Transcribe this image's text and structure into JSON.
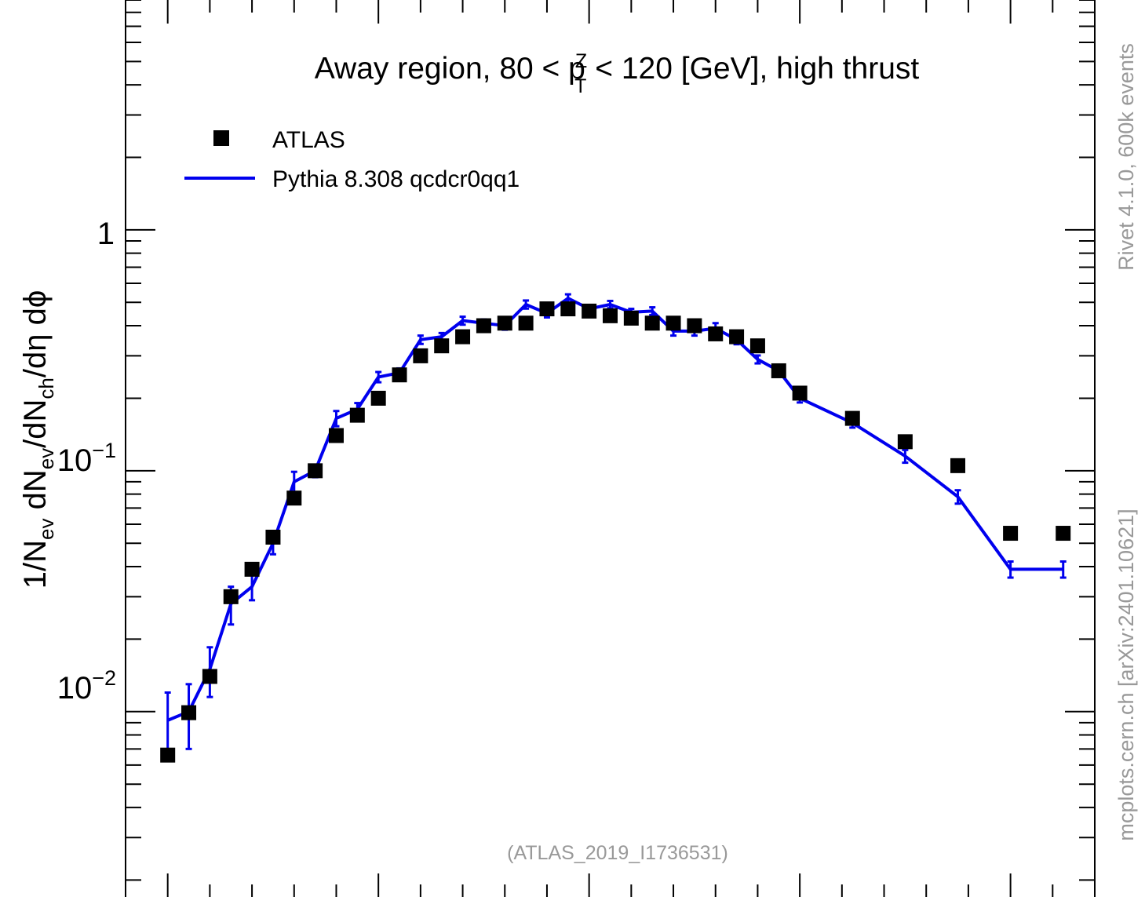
{
  "chart_data": {
    "type": "scatter",
    "title": "Away region, 80 < p",
    "title_sup": "Z",
    "title_sub": "T",
    "title_tail": " < 120 [GeV], high thrust",
    "ylabel": {
      "p1": "1/N",
      "s1": "ev",
      "p2": " dN",
      "s2": "ev",
      "p3": "/dN",
      "s3": "ch",
      "p4": "/dη dϕ"
    },
    "yscale": "log",
    "ylim": [
      0.0017,
      9.0
    ],
    "xlim": [
      -0.2,
      4.4
    ],
    "y_tick_labels": [
      {
        "value": 1,
        "base": "1",
        "exp": ""
      },
      {
        "value": 0.1,
        "base": "10",
        "exp": "−1"
      },
      {
        "value": 0.01,
        "base": "10",
        "exp": "−2"
      }
    ],
    "legend_position": "top-left",
    "reference_label": "(ATLAS_2019_I1736531)",
    "side_text_top": "Rivet 4.1.0,  600k events",
    "side_text_bottom": "mcplots.cern.ch [arXiv:2401.10621]",
    "series": [
      {
        "name": "ATLAS",
        "style": "marker",
        "color": "#000000",
        "x": [
          0.0,
          0.1,
          0.2,
          0.3,
          0.4,
          0.5,
          0.6,
          0.7,
          0.8,
          0.9,
          1.0,
          1.1,
          1.2,
          1.3,
          1.4,
          1.5,
          1.6,
          1.7,
          1.8,
          1.9,
          2.0,
          2.1,
          2.2,
          2.3,
          2.4,
          2.5,
          2.6,
          2.7,
          2.8,
          2.9,
          3.0,
          3.25,
          3.5,
          3.75,
          4.0,
          4.25
        ],
        "y": [
          0.0066,
          0.0099,
          0.014,
          0.03,
          0.039,
          0.053,
          0.077,
          0.1,
          0.14,
          0.17,
          0.2,
          0.25,
          0.3,
          0.33,
          0.36,
          0.4,
          0.41,
          0.41,
          0.47,
          0.47,
          0.46,
          0.44,
          0.43,
          0.41,
          0.41,
          0.4,
          0.37,
          0.36,
          0.33,
          0.26,
          0.21,
          0.165,
          0.132,
          0.105,
          0.055,
          0.055
        ]
      },
      {
        "name": "Pythia 8.308 qcdcr0qq1",
        "style": "line",
        "color": "#0000ee",
        "x": [
          0.0,
          0.1,
          0.2,
          0.3,
          0.4,
          0.5,
          0.6,
          0.7,
          0.8,
          0.9,
          1.0,
          1.1,
          1.2,
          1.3,
          1.4,
          1.5,
          1.6,
          1.7,
          1.8,
          1.9,
          2.0,
          2.1,
          2.2,
          2.3,
          2.4,
          2.5,
          2.6,
          2.7,
          2.8,
          2.9,
          3.0,
          3.25,
          3.5,
          3.75,
          4.0,
          4.25
        ],
        "y": [
          0.0092,
          0.01,
          0.015,
          0.028,
          0.033,
          0.05,
          0.09,
          0.1,
          0.165,
          0.18,
          0.245,
          0.255,
          0.35,
          0.36,
          0.42,
          0.41,
          0.4,
          0.49,
          0.45,
          0.52,
          0.47,
          0.49,
          0.455,
          0.46,
          0.38,
          0.38,
          0.39,
          0.35,
          0.29,
          0.26,
          0.2,
          0.158,
          0.115,
          0.078,
          0.039,
          0.039
        ],
        "yerr": [
          0.0028,
          0.003,
          0.0035,
          0.005,
          0.004,
          0.005,
          0.009,
          0.006,
          0.012,
          0.011,
          0.012,
          0.011,
          0.014,
          0.013,
          0.016,
          0.015,
          0.015,
          0.019,
          0.017,
          0.02,
          0.015,
          0.017,
          0.015,
          0.017,
          0.016,
          0.016,
          0.02,
          0.015,
          0.011,
          0.009,
          0.008,
          0.007,
          0.007,
          0.005,
          0.003,
          0.003
        ]
      }
    ]
  }
}
